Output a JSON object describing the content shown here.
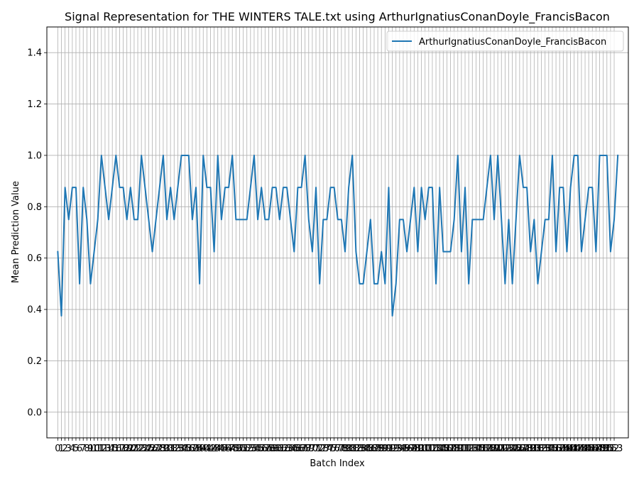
{
  "chart_data": {
    "type": "line",
    "title": "Signal Representation for THE WINTERS TALE.txt using ArthurIgnatiusConanDoyle_FrancisBacon",
    "xlabel": "Batch Index",
    "ylabel": "Mean Prediction Value",
    "xlim": [
      -3.0,
      156.9
    ],
    "ylim": [
      -0.1,
      1.5
    ],
    "yticks": [
      0.0,
      0.2,
      0.4,
      0.6,
      0.8,
      1.0,
      1.2,
      1.4
    ],
    "ytick_labels": [
      "0.0",
      "0.2",
      "0.4",
      "0.6",
      "0.8",
      "1.0",
      "1.2",
      "1.4"
    ],
    "xticks_count": 154,
    "grid": true,
    "legend_position": "top-right",
    "colors": {
      "line": "#1f77b4",
      "grid": "#b0b0b0",
      "axes": "#000000"
    },
    "series": [
      {
        "name": "ArthurIgnatiusConanDoyle_FrancisBacon",
        "values": [
          0.625,
          0.375,
          0.875,
          0.75,
          0.875,
          0.875,
          0.5,
          0.875,
          0.75,
          0.5,
          0.625,
          0.75,
          1.0,
          0.875,
          0.75,
          0.875,
          1.0,
          0.875,
          0.875,
          0.75,
          0.875,
          0.75,
          0.75,
          1.0,
          0.875,
          0.75,
          0.625,
          0.75,
          0.875,
          1.0,
          0.75,
          0.875,
          0.75,
          0.875,
          1.0,
          1.0,
          1.0,
          0.75,
          0.875,
          0.5,
          1.0,
          0.875,
          0.875,
          0.625,
          1.0,
          0.75,
          0.875,
          0.875,
          1.0,
          0.75,
          0.75,
          0.75,
          0.75,
          0.875,
          1.0,
          0.75,
          0.875,
          0.75,
          0.75,
          0.875,
          0.875,
          0.75,
          0.875,
          0.875,
          0.75,
          0.625,
          0.875,
          0.875,
          1.0,
          0.75,
          0.625,
          0.875,
          0.5,
          0.75,
          0.75,
          0.875,
          0.875,
          0.75,
          0.75,
          0.625,
          0.875,
          1.0,
          0.625,
          0.5,
          0.5,
          0.625,
          0.75,
          0.5,
          0.5,
          0.625,
          0.5,
          0.875,
          0.375,
          0.5,
          0.75,
          0.75,
          0.625,
          0.75,
          0.875,
          0.625,
          0.875,
          0.75,
          0.875,
          0.875,
          0.5,
          0.875,
          0.625,
          0.625,
          0.625,
          0.75,
          1.0,
          0.625,
          0.875,
          0.5,
          0.75,
          0.75,
          0.75,
          0.75,
          0.875,
          1.0,
          0.75,
          1.0,
          0.75,
          0.5,
          0.75,
          0.5,
          0.75,
          1.0,
          0.875,
          0.875,
          0.625,
          0.75,
          0.5,
          0.625,
          0.75,
          0.75,
          1.0,
          0.625,
          0.875,
          0.875,
          0.625,
          0.875,
          1.0,
          1.0,
          0.625,
          0.75,
          0.875,
          0.875,
          0.625,
          1.0,
          1.0,
          1.0,
          0.625,
          0.75,
          1.0
        ]
      }
    ]
  }
}
